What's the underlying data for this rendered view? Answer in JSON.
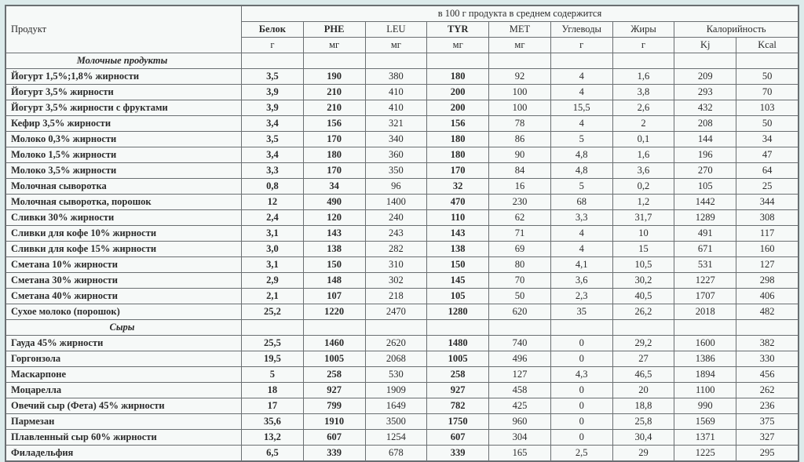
{
  "background_color": "#dcebeb",
  "sheet_color": "#f6f9f8",
  "border_color": "#6a6f72",
  "header": {
    "product": "Продукт",
    "per100": "в 100 г продукта в среднем содержится",
    "cols": [
      "Белок",
      "PHE",
      "LEU",
      "TYR",
      "MET",
      "Углеводы",
      "Жиры",
      "Калорийность"
    ],
    "units": [
      "г",
      "мг",
      "мг",
      "мг",
      "мг",
      "г",
      "г",
      "Kj",
      "Kcal"
    ]
  },
  "col_bold": [
    true,
    true,
    false,
    true,
    false,
    false,
    false,
    false,
    false
  ],
  "sections": [
    {
      "title": "Молочные продукты",
      "rows": [
        {
          "name": "Йогурт 1,5%;1,8% жирности",
          "v": [
            "3,5",
            "190",
            "380",
            "180",
            "92",
            "4",
            "1,6",
            "209",
            "50"
          ]
        },
        {
          "name": "Йогурт 3,5% жирности",
          "v": [
            "3,9",
            "210",
            "410",
            "200",
            "100",
            "4",
            "3,8",
            "293",
            "70"
          ]
        },
        {
          "name": "Йогурт 3,5% жирности с фруктами",
          "v": [
            "3,9",
            "210",
            "410",
            "200",
            "100",
            "15,5",
            "2,6",
            "432",
            "103"
          ]
        },
        {
          "name": "Кефир 3,5% жирности",
          "v": [
            "3,4",
            "156",
            "321",
            "156",
            "78",
            "4",
            "2",
            "208",
            "50"
          ]
        },
        {
          "name": "Молоко 0,3% жирности",
          "v": [
            "3,5",
            "170",
            "340",
            "180",
            "86",
            "5",
            "0,1",
            "144",
            "34"
          ]
        },
        {
          "name": "Молоко 1,5% жирности",
          "v": [
            "3,4",
            "180",
            "360",
            "180",
            "90",
            "4,8",
            "1,6",
            "196",
            "47"
          ]
        },
        {
          "name": "Молоко 3,5% жирности",
          "v": [
            "3,3",
            "170",
            "350",
            "170",
            "84",
            "4,8",
            "3,6",
            "270",
            "64"
          ]
        },
        {
          "name": "Молочная сыворотка",
          "v": [
            "0,8",
            "34",
            "96",
            "32",
            "16",
            "5",
            "0,2",
            "105",
            "25"
          ]
        },
        {
          "name": "Молочная сыворотка, порошок",
          "v": [
            "12",
            "490",
            "1400",
            "470",
            "230",
            "68",
            "1,2",
            "1442",
            "344"
          ]
        },
        {
          "name": "Сливки 30% жирности",
          "v": [
            "2,4",
            "120",
            "240",
            "110",
            "62",
            "3,3",
            "31,7",
            "1289",
            "308"
          ]
        },
        {
          "name": "Сливки для кофе 10% жирности",
          "v": [
            "3,1",
            "143",
            "243",
            "143",
            "71",
            "4",
            "10",
            "491",
            "117"
          ]
        },
        {
          "name": "Сливки для кофе 15% жирности",
          "v": [
            "3,0",
            "138",
            "282",
            "138",
            "69",
            "4",
            "15",
            "671",
            "160"
          ]
        },
        {
          "name": "Сметана 10% жирности",
          "v": [
            "3,1",
            "150",
            "310",
            "150",
            "80",
            "4,1",
            "10,5",
            "531",
            "127"
          ]
        },
        {
          "name": "Сметана 30% жирности",
          "v": [
            "2,9",
            "148",
            "302",
            "145",
            "70",
            "3,6",
            "30,2",
            "1227",
            "298"
          ]
        },
        {
          "name": "Сметана 40% жирности",
          "v": [
            "2,1",
            "107",
            "218",
            "105",
            "50",
            "2,3",
            "40,5",
            "1707",
            "406"
          ]
        },
        {
          "name": "Сухое молоко (порошок)",
          "v": [
            "25,2",
            "1220",
            "2470",
            "1280",
            "620",
            "35",
            "26,2",
            "2018",
            "482"
          ]
        }
      ]
    },
    {
      "title": "Сыры",
      "rows": [
        {
          "name": "Гауда 45% жирности",
          "v": [
            "25,5",
            "1460",
            "2620",
            "1480",
            "740",
            "0",
            "29,2",
            "1600",
            "382"
          ]
        },
        {
          "name": "Горгонзола",
          "v": [
            "19,5",
            "1005",
            "2068",
            "1005",
            "496",
            "0",
            "27",
            "1386",
            "330"
          ]
        },
        {
          "name": "Маскарпоне",
          "v": [
            "5",
            "258",
            "530",
            "258",
            "127",
            "4,3",
            "46,5",
            "1894",
            "456"
          ]
        },
        {
          "name": "Моцарелла",
          "v": [
            "18",
            "927",
            "1909",
            "927",
            "458",
            "0",
            "20",
            "1100",
            "262"
          ]
        },
        {
          "name": "Овечий сыр (Фета) 45% жирности",
          "v": [
            "17",
            "799",
            "1649",
            "782",
            "425",
            "0",
            "18,8",
            "990",
            "236"
          ]
        },
        {
          "name": "Пармезан",
          "v": [
            "35,6",
            "1910",
            "3500",
            "1750",
            "960",
            "0",
            "25,8",
            "1569",
            "375"
          ]
        },
        {
          "name": "Плавленный сыр 60% жирности",
          "v": [
            "13,2",
            "607",
            "1254",
            "607",
            "304",
            "0",
            "30,4",
            "1371",
            "327"
          ]
        },
        {
          "name": "Филадельфия",
          "v": [
            "6,5",
            "339",
            "678",
            "339",
            "165",
            "2,5",
            "29",
            "1225",
            "295"
          ]
        }
      ]
    }
  ]
}
